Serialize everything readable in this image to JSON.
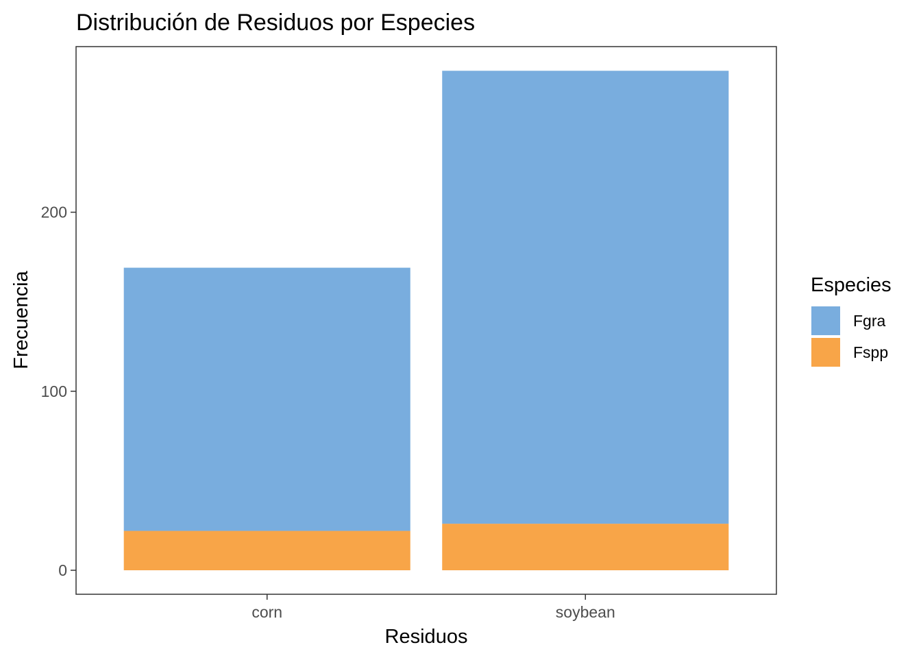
{
  "chart_data": {
    "type": "bar",
    "stacked": true,
    "title": "Distribución de Residuos por Especies",
    "xlabel": "Residuos",
    "ylabel": "Frecuencia",
    "categories": [
      "corn",
      "soybean"
    ],
    "series": [
      {
        "name": "Fgra",
        "values": [
          147,
          253
        ],
        "color": "#79ADDE"
      },
      {
        "name": "Fspp",
        "values": [
          22,
          26
        ],
        "color": "#F8A548"
      }
    ],
    "yticks": [
      0,
      100,
      200
    ],
    "ytick_labels": [
      "0",
      "100",
      "200"
    ],
    "ylim": [
      -13.4,
      292.5
    ],
    "grid": false,
    "legend": {
      "title": "Especies",
      "position": "right"
    }
  }
}
